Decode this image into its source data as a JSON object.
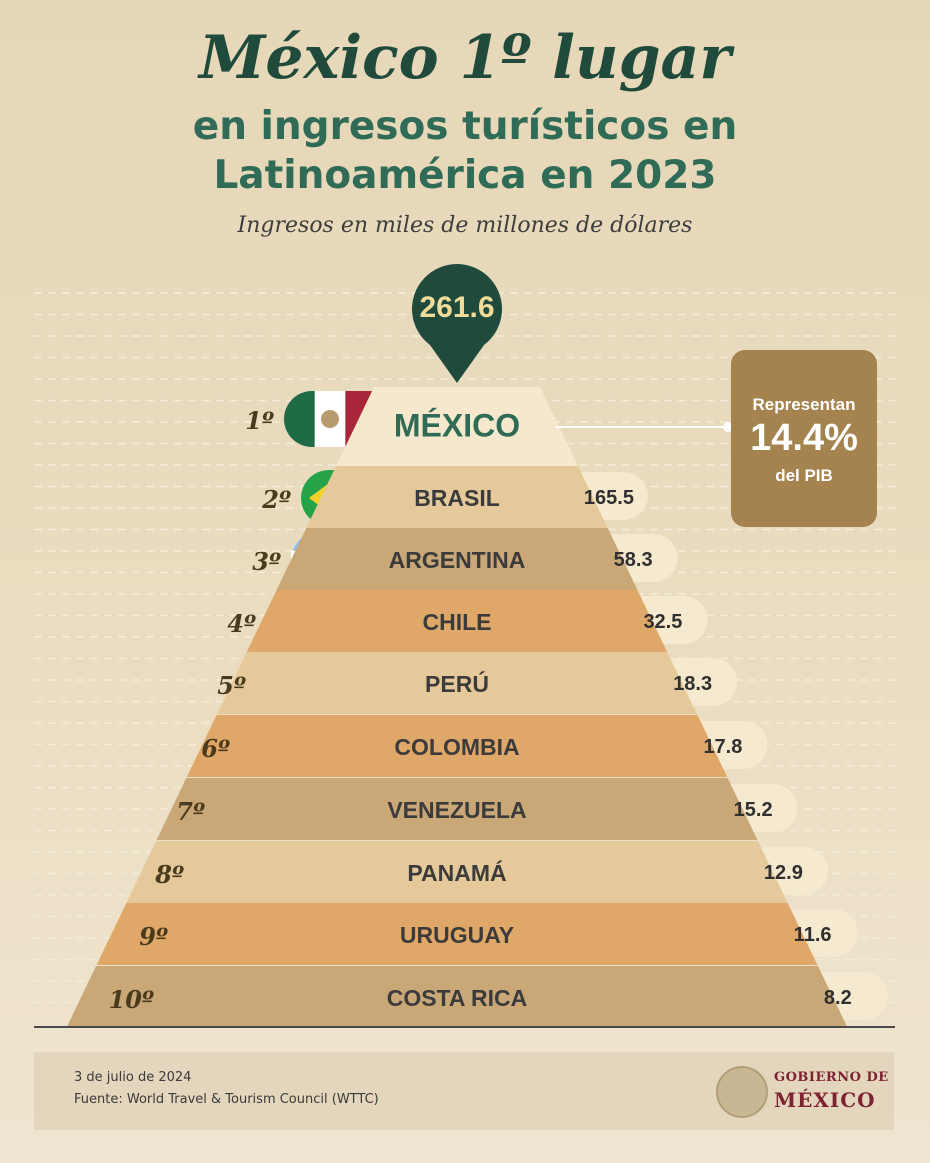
{
  "header": {
    "title": "México 1º lugar",
    "subtitle_line1": "en ingresos turísticos en",
    "subtitle_line2": "Latinoamérica en 2023",
    "units": "Ingresos en miles de millones de dólares"
  },
  "callout": {
    "line1": "Representan",
    "value": "14.4%",
    "line2": "del PIB"
  },
  "colors": {
    "green_dark": "#1f4a3c",
    "green": "#2f6b56",
    "bar_light": "#f5e8cd",
    "bar_mid": "#e6c99a",
    "bar_dark": "#c9a777",
    "bar_orange": "#e0a868",
    "callout_bg": "#a5834f"
  },
  "chart_data": {
    "type": "bar",
    "title": "México 1º lugar en ingresos turísticos en Latinoamérica en 2023",
    "ylabel": "Ingresos en miles de millones de dólares",
    "ranks": [
      "1º",
      "2º",
      "3º",
      "4º",
      "5º",
      "6º",
      "7º",
      "8º",
      "9º",
      "10º"
    ],
    "categories": [
      "MÉXICO",
      "BRASIL",
      "ARGENTINA",
      "CHILE",
      "PERÚ",
      "COLOMBIA",
      "VENEZUELA",
      "PANAMÁ",
      "URUGUAY",
      "COSTA RICA"
    ],
    "values": [
      261.6,
      165.5,
      58.3,
      32.5,
      18.3,
      17.8,
      15.2,
      12.9,
      11.6,
      8.2
    ],
    "value_labels": [
      "261.6",
      "165.5",
      "58.3",
      "32.5",
      "18.3",
      "17.8",
      "15.2",
      "12.9",
      "11.6",
      "8.2"
    ]
  },
  "footer": {
    "date": "3 de julio de 2024",
    "source": "Fuente: World Travel & Tourism Council (WTTC)",
    "gov_line1": "GOBIERNO DE",
    "gov_line2": "MÉXICO"
  }
}
